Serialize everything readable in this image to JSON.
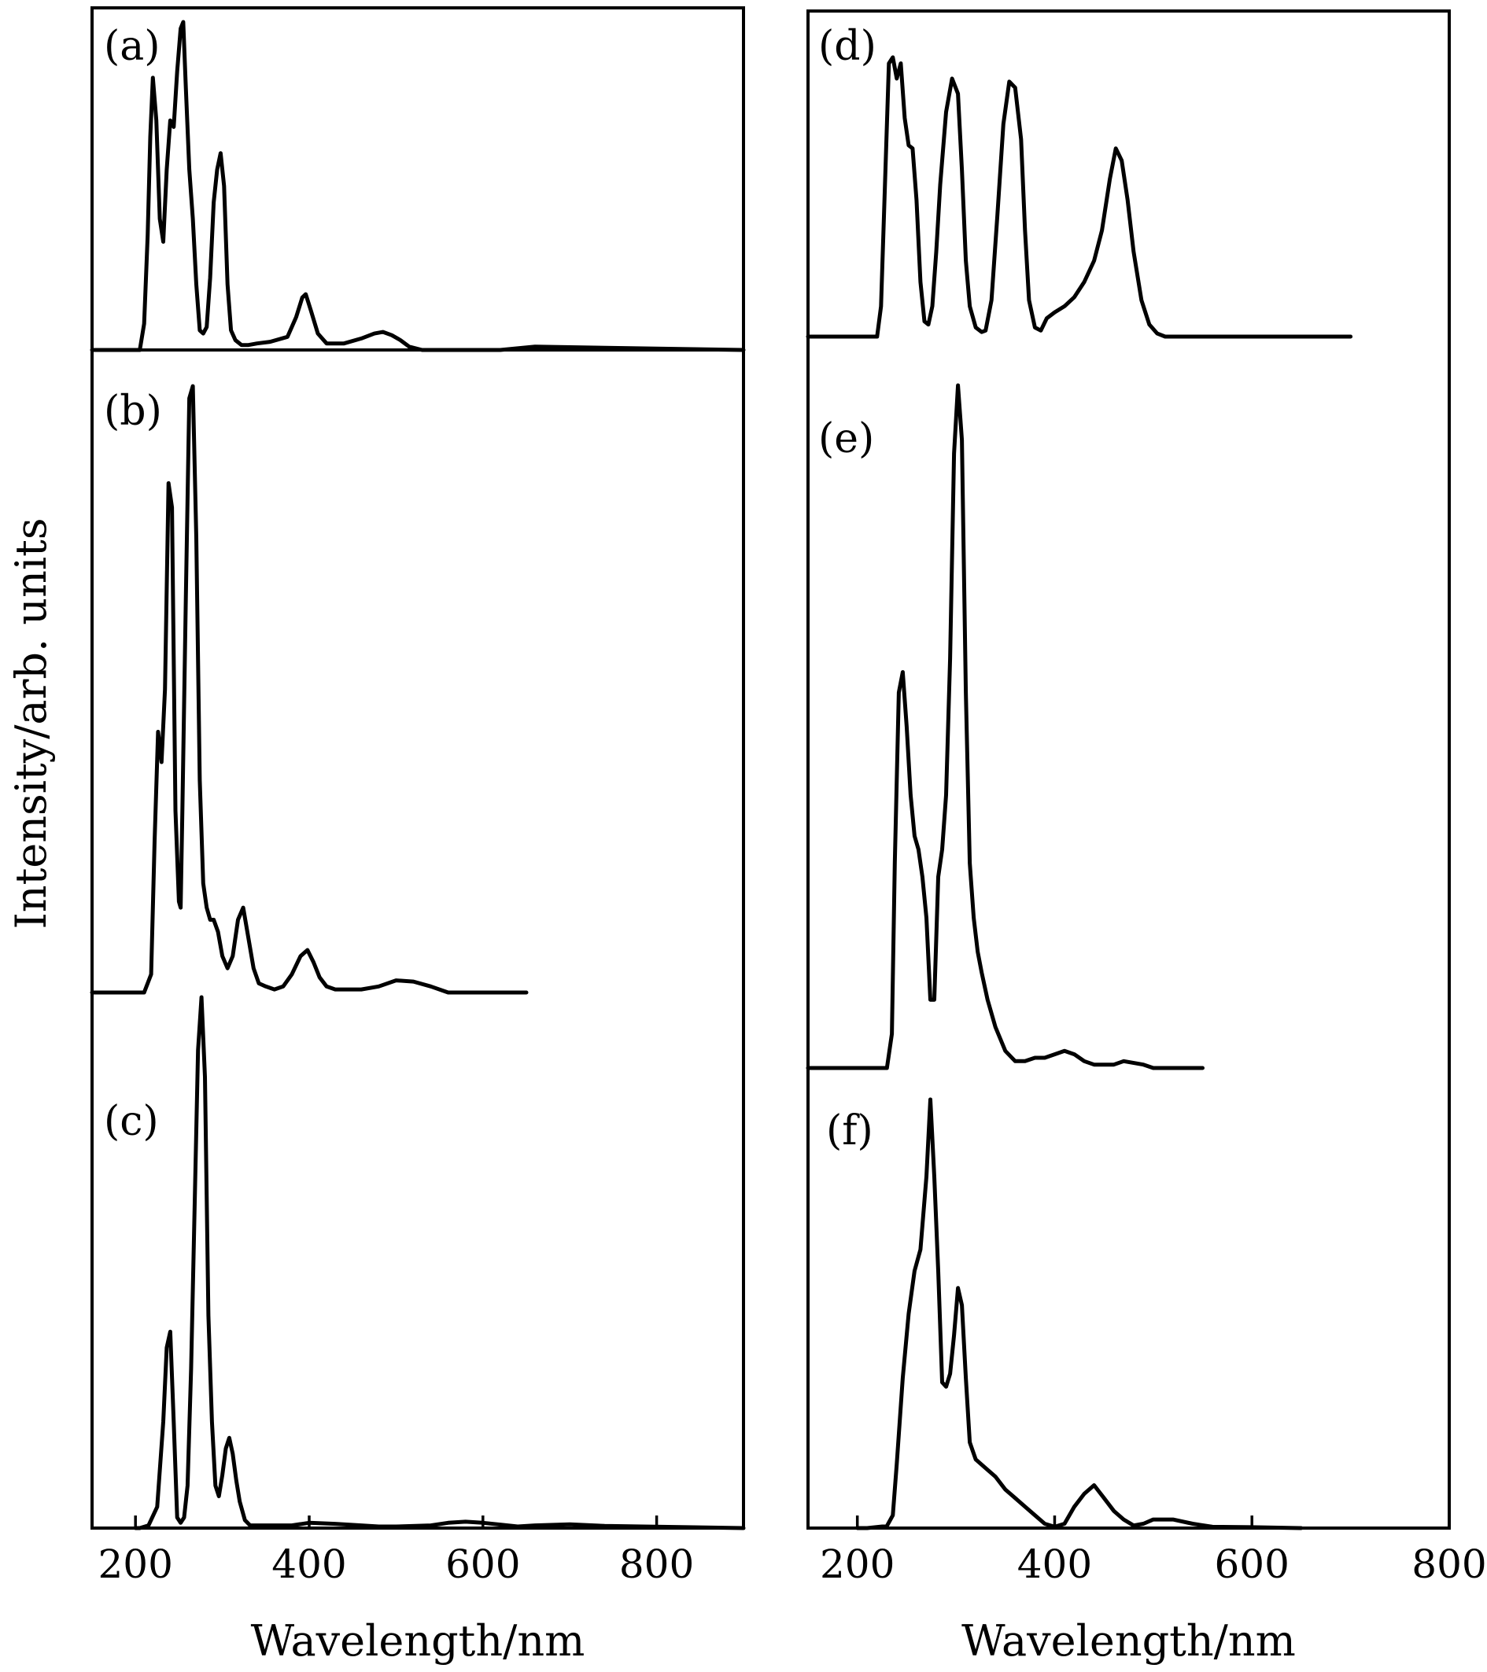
{
  "chart_data": {
    "type": "line",
    "ylabel": "Intensity/arb. units",
    "columns": [
      {
        "xlabel": "Wavelength/nm",
        "xlim": [
          150,
          900
        ],
        "xticks": [
          200,
          400,
          600,
          800
        ],
        "panels": [
          {
            "label": "(a)",
            "x": [
              150,
              205,
              210,
              214,
              217,
              220,
              224,
              228,
              232,
              236,
              240,
              244,
              248,
              252,
              255,
              258,
              262,
              266,
              270,
              274,
              278,
              282,
              286,
              290,
              294,
              298,
              302,
              306,
              310,
              315,
              322,
              330,
              340,
              355,
              375,
              385,
              392,
              396,
              402,
              410,
              420,
              440,
              460,
              475,
              485,
              495,
              505,
              515,
              530,
              620,
              660,
              900
            ],
            "y": [
              0,
              0,
              0.08,
              0.35,
              0.65,
              0.83,
              0.7,
              0.4,
              0.33,
              0.55,
              0.7,
              0.68,
              0.85,
              0.98,
              1.0,
              0.8,
              0.55,
              0.4,
              0.2,
              0.06,
              0.05,
              0.07,
              0.22,
              0.45,
              0.55,
              0.6,
              0.5,
              0.2,
              0.06,
              0.03,
              0.015,
              0.015,
              0.02,
              0.025,
              0.04,
              0.1,
              0.16,
              0.17,
              0.12,
              0.05,
              0.02,
              0.02,
              0.035,
              0.05,
              0.055,
              0.045,
              0.03,
              0.01,
              0,
              0,
              0.01,
              0
            ]
          },
          {
            "label": "(b)",
            "x": [
              150,
              210,
              218,
              222,
              226,
              230,
              234,
              238,
              242,
              246,
              250,
              252,
              254,
              258,
              262,
              266,
              270,
              274,
              278,
              282,
              286,
              290,
              295,
              300,
              306,
              312,
              318,
              324,
              330,
              336,
              342,
              350,
              360,
              370,
              380,
              390,
              398,
              405,
              412,
              420,
              430,
              460,
              480,
              500,
              520,
              540,
              560,
              650
            ],
            "y": [
              0,
              0,
              0.03,
              0.25,
              0.43,
              0.38,
              0.5,
              0.84,
              0.8,
              0.3,
              0.15,
              0.14,
              0.3,
              0.65,
              0.98,
              1.0,
              0.75,
              0.35,
              0.18,
              0.14,
              0.12,
              0.12,
              0.1,
              0.06,
              0.04,
              0.06,
              0.12,
              0.14,
              0.09,
              0.04,
              0.015,
              0.01,
              0.005,
              0.01,
              0.03,
              0.06,
              0.07,
              0.05,
              0.025,
              0.01,
              0.005,
              0.005,
              0.01,
              0.02,
              0.018,
              0.01,
              0,
              0
            ]
          },
          {
            "label": "(c)",
            "x": [
              200,
              205,
              215,
              225,
              232,
              236,
              240,
              244,
              248,
              252,
              256,
              260,
              264,
              268,
              272,
              276,
              280,
              284,
              288,
              292,
              296,
              300,
              304,
              308,
              312,
              316,
              320,
              326,
              332,
              340,
              350,
              380,
              400,
              430,
              460,
              480,
              500,
              540,
              560,
              580,
              600,
              640,
              660,
              700,
              740,
              900
            ],
            "y": [
              0,
              0,
              0.005,
              0.04,
              0.2,
              0.34,
              0.37,
              0.2,
              0.02,
              0.01,
              0.02,
              0.08,
              0.3,
              0.6,
              0.9,
              1.0,
              0.85,
              0.4,
              0.2,
              0.08,
              0.06,
              0.1,
              0.15,
              0.17,
              0.14,
              0.09,
              0.05,
              0.015,
              0.005,
              0.005,
              0.005,
              0.005,
              0.01,
              0.008,
              0.005,
              0.003,
              0.003,
              0.005,
              0.01,
              0.012,
              0.01,
              0.003,
              0.005,
              0.007,
              0.004,
              0
            ]
          }
        ]
      },
      {
        "xlabel": "Wavelength/nm",
        "xlim": [
          150,
          800
        ],
        "xticks": [
          200,
          400,
          600,
          800
        ],
        "panels": [
          {
            "label": "(d)",
            "x": [
              150,
              220,
              224,
              228,
              232,
              236,
              240,
              244,
              248,
              252,
              256,
              260,
              264,
              268,
              272,
              276,
              280,
              284,
              290,
              296,
              302,
              306,
              310,
              314,
              320,
              326,
              330,
              336,
              342,
              348,
              354,
              360,
              366,
              370,
              374,
              380,
              386,
              392,
              400,
              410,
              420,
              430,
              440,
              448,
              456,
              462,
              468,
              474,
              480,
              488,
              496,
              504,
              512,
              520,
              560,
              700
            ],
            "y": [
              0,
              0,
              0.1,
              0.5,
              0.9,
              0.92,
              0.85,
              0.9,
              0.72,
              0.63,
              0.62,
              0.45,
              0.18,
              0.05,
              0.04,
              0.1,
              0.28,
              0.5,
              0.74,
              0.85,
              0.8,
              0.55,
              0.25,
              0.1,
              0.03,
              0.015,
              0.02,
              0.12,
              0.4,
              0.7,
              0.84,
              0.82,
              0.65,
              0.35,
              0.12,
              0.03,
              0.02,
              0.06,
              0.08,
              0.1,
              0.13,
              0.18,
              0.25,
              0.35,
              0.52,
              0.62,
              0.58,
              0.45,
              0.28,
              0.12,
              0.04,
              0.01,
              0,
              0,
              0,
              0
            ]
          },
          {
            "label": "(e)",
            "x": [
              150,
              230,
              235,
              238,
              242,
              246,
              250,
              254,
              258,
              262,
              266,
              270,
              274,
              278,
              282,
              286,
              290,
              294,
              298,
              302,
              306,
              310,
              314,
              318,
              322,
              326,
              332,
              340,
              350,
              360,
              370,
              380,
              390,
              400,
              410,
              420,
              430,
              440,
              460,
              470,
              490,
              500,
              550
            ],
            "y": [
              0,
              0,
              0.05,
              0.3,
              0.55,
              0.58,
              0.5,
              0.4,
              0.34,
              0.32,
              0.28,
              0.22,
              0.1,
              0.1,
              0.28,
              0.32,
              0.4,
              0.6,
              0.9,
              1.0,
              0.92,
              0.55,
              0.3,
              0.22,
              0.17,
              0.14,
              0.1,
              0.06,
              0.025,
              0.01,
              0.01,
              0.015,
              0.015,
              0.02,
              0.025,
              0.02,
              0.01,
              0.005,
              0.005,
              0.01,
              0.005,
              0.0,
              0
            ]
          },
          {
            "label": "(f)",
            "x": [
              200,
              210,
              230,
              236,
              240,
              246,
              252,
              258,
              264,
              270,
              274,
              278,
              282,
              286,
              290,
              294,
              298,
              302,
              306,
              310,
              314,
              320,
              330,
              340,
              350,
              360,
              370,
              380,
              390,
              400,
              410,
              420,
              430,
              440,
              450,
              460,
              470,
              480,
              490,
              500,
              520,
              540,
              560,
              600,
              650
            ],
            "y": [
              0,
              0,
              0.005,
              0.03,
              0.15,
              0.35,
              0.5,
              0.6,
              0.65,
              0.82,
              1.0,
              0.82,
              0.6,
              0.34,
              0.33,
              0.36,
              0.45,
              0.56,
              0.52,
              0.35,
              0.2,
              0.16,
              0.14,
              0.12,
              0.09,
              0.07,
              0.05,
              0.03,
              0.01,
              0.003,
              0.01,
              0.05,
              0.08,
              0.1,
              0.07,
              0.04,
              0.02,
              0.006,
              0.01,
              0.02,
              0.02,
              0.01,
              0.003,
              0.002,
              0
            ]
          }
        ]
      }
    ]
  }
}
